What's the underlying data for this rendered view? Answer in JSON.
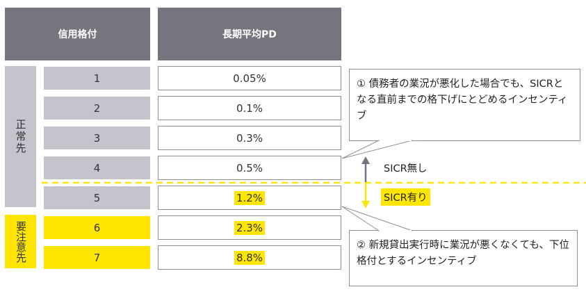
{
  "header": {
    "rating_label": "信用格付",
    "pd_label": "長期平均PD"
  },
  "groups": {
    "normal": "正常先",
    "watch": "要注意先"
  },
  "rows": [
    {
      "rating": "1",
      "pd": "0.05%"
    },
    {
      "rating": "2",
      "pd": "0.1%"
    },
    {
      "rating": "3",
      "pd": "0.3%"
    },
    {
      "rating": "4",
      "pd": "0.5%"
    },
    {
      "rating": "5",
      "pd": "1.2%"
    },
    {
      "rating": "6",
      "pd": "2.3%"
    },
    {
      "rating": "7",
      "pd": "8.8%"
    }
  ],
  "labels": {
    "no_sicr": "SICR無し",
    "sicr": "SICR有り"
  },
  "callouts": {
    "first": "①  債務者の業況が悪化した場合でも、SICRとなる直前までの格下げにとどめるインセンティブ",
    "second": "②  新規貸出実行時に業況が悪くなくても、下位格付とするインセンティブ"
  },
  "colors": {
    "header_gray": "#75757f",
    "cell_gray": "#c4c4cd",
    "yellow": "#ffe600",
    "arrow_gray": "#75757f"
  }
}
